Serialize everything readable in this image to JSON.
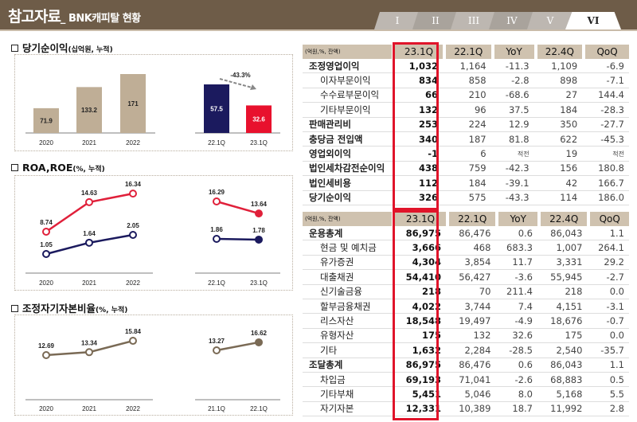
{
  "header": {
    "title": "참고자료",
    "subtitle": "_ BNK캐피탈 현황",
    "tabs": [
      "I",
      "II",
      "III",
      "IV",
      "V",
      "VI"
    ],
    "active_tab": "VI"
  },
  "sections": {
    "net_income": {
      "title": "당기순이익",
      "unit": "(십억원, 누적)"
    },
    "roa_roe": {
      "title": "ROA,ROE",
      "unit": "(%, 누적)"
    },
    "capital": {
      "title": "조정자기자본비율",
      "unit": "(%, 누적)"
    }
  },
  "chart_data": [
    {
      "type": "bar",
      "panel": "net_income",
      "groups": [
        {
          "categories": [
            "2020",
            "2021",
            "2022"
          ],
          "values": [
            71.9,
            133.2,
            171.0
          ],
          "colors": [
            "#bfae96",
            "#bfae96",
            "#bfae96"
          ]
        },
        {
          "categories": [
            "22.1Q",
            "23.1Q"
          ],
          "values": [
            57.5,
            32.6
          ],
          "colors": [
            "#1b1a5e",
            "#e8112d"
          ],
          "annotation": "-43.3%"
        }
      ]
    },
    {
      "type": "line",
      "panel": "roa_roe",
      "groups": [
        {
          "categories": [
            "2020",
            "2021",
            "2022"
          ],
          "series": [
            {
              "values": [
                8.74,
                14.63,
                16.34
              ],
              "color": "#e0203a"
            },
            {
              "values": [
                1.05,
                1.64,
                2.05
              ],
              "color": "#1b1a5e"
            }
          ]
        },
        {
          "categories": [
            "22.1Q",
            "23.1Q"
          ],
          "series": [
            {
              "values": [
                16.29,
                13.64
              ],
              "color": "#e0203a"
            },
            {
              "values": [
                1.86,
                1.78
              ],
              "color": "#1b1a5e"
            }
          ]
        }
      ]
    },
    {
      "type": "line",
      "panel": "capital",
      "groups": [
        {
          "categories": [
            "2020",
            "2021",
            "2022"
          ],
          "series": [
            {
              "values": [
                12.69,
                13.34,
                15.84
              ],
              "color": "#7a6a55"
            }
          ]
        },
        {
          "categories": [
            "21.1Q",
            "22.1Q"
          ],
          "series": [
            {
              "values": [
                13.27,
                16.62
              ],
              "color": "#7a6a55"
            }
          ]
        }
      ]
    }
  ],
  "table1": {
    "unit": "(억원,%, 잔액)",
    "columns": [
      "23.1Q",
      "22.1Q",
      "YoY",
      "22.4Q",
      "QoQ"
    ],
    "rows": [
      {
        "label": "조정영업이익",
        "level": "main",
        "values": [
          "1,032",
          "1,164",
          "-11.3",
          "1,109",
          "-6.9"
        ]
      },
      {
        "label": "이자부문이익",
        "level": "sub",
        "values": [
          "834",
          "858",
          "-2.8",
          "898",
          "-7.1"
        ]
      },
      {
        "label": "수수료부문이익",
        "level": "sub",
        "values": [
          "66",
          "210",
          "-68.6",
          "27",
          "144.4"
        ]
      },
      {
        "label": "기타부문이익",
        "level": "sub",
        "values": [
          "132",
          "96",
          "37.5",
          "184",
          "-28.3"
        ]
      },
      {
        "label": "판매관리비",
        "level": "main",
        "values": [
          "253",
          "224",
          "12.9",
          "350",
          "-27.7"
        ]
      },
      {
        "label": "충당금 전입액",
        "level": "main",
        "values": [
          "340",
          "187",
          "81.8",
          "622",
          "-45.3"
        ]
      },
      {
        "label": "영업외이익",
        "level": "main",
        "values": [
          "-1",
          "6",
          "적전",
          "19",
          "적전"
        ]
      },
      {
        "label": "법인세차감전순이익",
        "level": "main",
        "values": [
          "438",
          "759",
          "-42.3",
          "156",
          "180.8"
        ]
      },
      {
        "label": "법인세비용",
        "level": "main",
        "values": [
          "112",
          "184",
          "-39.1",
          "42",
          "166.7"
        ]
      },
      {
        "label": "당기순이익",
        "level": "main",
        "values": [
          "326",
          "575",
          "-43.3",
          "114",
          "186.0"
        ]
      }
    ]
  },
  "table2": {
    "unit": "(억원,%, 잔액)",
    "columns": [
      "23.1Q",
      "22.1Q",
      "YoY",
      "22.4Q",
      "QoQ"
    ],
    "rows": [
      {
        "label": "운용총계",
        "level": "main",
        "values": [
          "86,975",
          "86,476",
          "0.6",
          "86,043",
          "1.1"
        ]
      },
      {
        "label": "현금 및 예치금",
        "level": "sub",
        "values": [
          "3,666",
          "468",
          "683.3",
          "1,007",
          "264.1"
        ]
      },
      {
        "label": "유가증권",
        "level": "sub",
        "values": [
          "4,304",
          "3,854",
          "11.7",
          "3,331",
          "29.2"
        ]
      },
      {
        "label": "대출채권",
        "level": "sub",
        "values": [
          "54,410",
          "56,427",
          "-3.6",
          "55,945",
          "-2.7"
        ]
      },
      {
        "label": "신기술금융",
        "level": "sub",
        "values": [
          "218",
          "70",
          "211.4",
          "218",
          "0.0"
        ]
      },
      {
        "label": "할부금융채권",
        "level": "sub",
        "values": [
          "4,022",
          "3,744",
          "7.4",
          "4,151",
          "-3.1"
        ]
      },
      {
        "label": "리스자산",
        "level": "sub",
        "values": [
          "18,548",
          "19,497",
          "-4.9",
          "18,676",
          "-0.7"
        ]
      },
      {
        "label": "유형자산",
        "level": "sub",
        "values": [
          "175",
          "132",
          "32.6",
          "175",
          "0.0"
        ]
      },
      {
        "label": "기타",
        "level": "sub",
        "values": [
          "1,632",
          "2,284",
          "-28.5",
          "2,540",
          "-35.7"
        ]
      },
      {
        "label": "조달총계",
        "level": "main",
        "values": [
          "86,975",
          "86,476",
          "0.6",
          "86,043",
          "1.1"
        ]
      },
      {
        "label": "차입금",
        "level": "sub",
        "values": [
          "69,193",
          "71,041",
          "-2.6",
          "68,883",
          "0.5"
        ]
      },
      {
        "label": "기타부채",
        "level": "sub",
        "values": [
          "5,451",
          "5,046",
          "8.0",
          "5,168",
          "5.5"
        ]
      },
      {
        "label": "자기자본",
        "level": "sub",
        "values": [
          "12,331",
          "10,389",
          "18.7",
          "11,992",
          "2.8"
        ]
      }
    ]
  }
}
